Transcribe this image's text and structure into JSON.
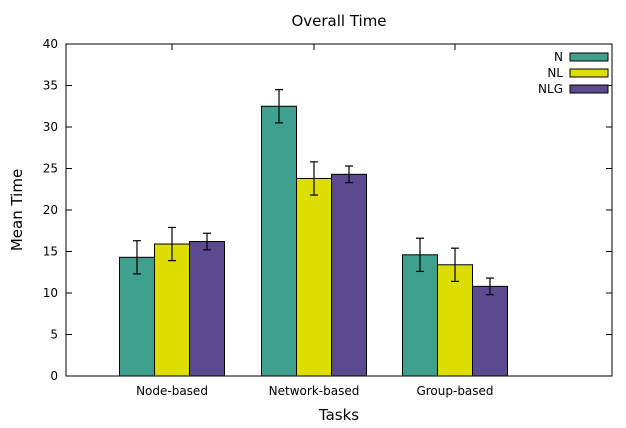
{
  "chart_data": {
    "type": "bar",
    "title": "Overall Time",
    "xlabel": "Tasks",
    "ylabel": "Mean Time",
    "ylim": [
      0,
      40
    ],
    "yticks": [
      0,
      5,
      10,
      15,
      20,
      25,
      30,
      35,
      40
    ],
    "grid": false,
    "legend_position": "top-right",
    "categories": [
      "Node-based",
      "Network-based",
      "Group-based"
    ],
    "series": [
      {
        "name": "N",
        "color": "#3fa08e",
        "values": [
          14.3,
          32.5,
          14.6
        ],
        "errors": [
          2.0,
          2.0,
          2.0
        ]
      },
      {
        "name": "NL",
        "color": "#dddd00",
        "values": [
          15.9,
          23.8,
          13.4
        ],
        "errors": [
          2.0,
          2.0,
          2.0
        ]
      },
      {
        "name": "NLG",
        "color": "#5b4a90",
        "values": [
          16.2,
          24.3,
          10.8
        ],
        "errors": [
          1.0,
          1.0,
          1.0
        ]
      }
    ]
  }
}
